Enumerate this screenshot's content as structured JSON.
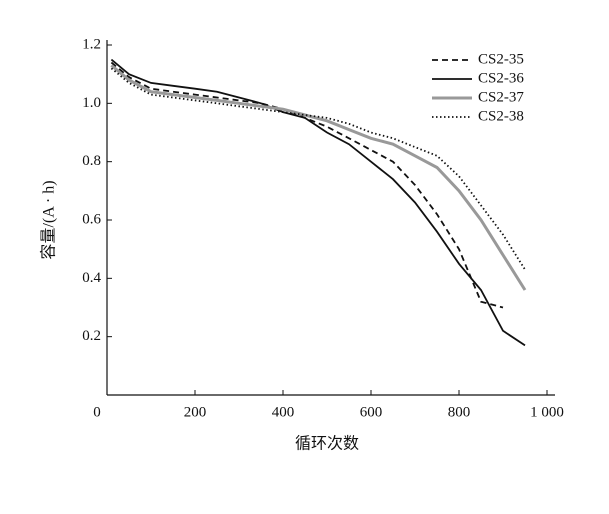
{
  "chart_data": {
    "type": "line",
    "xlabel": "循环次数",
    "ylabel": "容量/(A · h)",
    "x": [
      10,
      50,
      100,
      150,
      200,
      250,
      300,
      350,
      400,
      450,
      500,
      550,
      600,
      650,
      700,
      750,
      800,
      850,
      900,
      950
    ],
    "series": [
      {
        "name": "CS2-35",
        "color": "#111111",
        "dash": "dashed",
        "values": [
          1.14,
          1.09,
          1.05,
          1.04,
          1.03,
          1.02,
          1.01,
          1.0,
          0.98,
          0.95,
          0.92,
          0.88,
          0.84,
          0.8,
          0.72,
          0.62,
          0.5,
          0.32,
          0.3,
          null
        ]
      },
      {
        "name": "CS2-36",
        "color": "#111111",
        "dash": "solid",
        "values": [
          1.15,
          1.1,
          1.07,
          1.06,
          1.05,
          1.04,
          1.02,
          1.0,
          0.97,
          0.95,
          0.9,
          0.86,
          0.8,
          0.74,
          0.66,
          0.56,
          0.45,
          0.36,
          0.22,
          0.17
        ]
      },
      {
        "name": "CS2-37",
        "color": "#999999",
        "dash": "solid",
        "values": [
          1.13,
          1.08,
          1.04,
          1.03,
          1.02,
          1.01,
          1.0,
          0.99,
          0.98,
          0.96,
          0.94,
          0.91,
          0.88,
          0.86,
          0.82,
          0.78,
          0.7,
          0.6,
          0.48,
          0.36
        ]
      },
      {
        "name": "CS2-38",
        "color": "#111111",
        "dash": "dotted",
        "values": [
          1.12,
          1.07,
          1.03,
          1.02,
          1.01,
          1.0,
          0.99,
          0.98,
          0.97,
          0.96,
          0.95,
          0.93,
          0.9,
          0.88,
          0.85,
          0.82,
          0.75,
          0.65,
          0.55,
          0.43
        ]
      }
    ],
    "xlim": [
      0,
      1000
    ],
    "xticks": [
      0,
      200,
      400,
      600,
      800,
      {
        "value": 1000,
        "label": "1 000"
      }
    ],
    "ylim": [
      0,
      1.2
    ],
    "yticks": [
      0.2,
      0.4,
      0.6,
      0.8,
      {
        "value": 1,
        "label": "1.0"
      },
      1.2
    ],
    "grid": false,
    "legend": "upper right"
  }
}
